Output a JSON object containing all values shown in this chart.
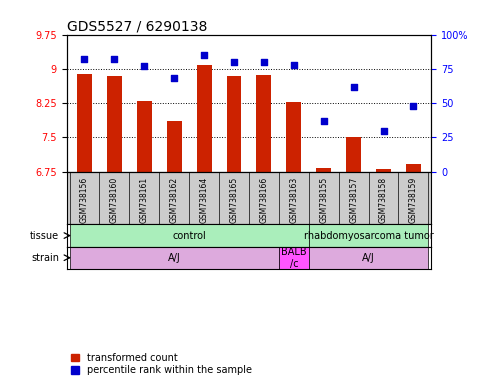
{
  "title": "GDS5527 / 6290138",
  "samples": [
    "GSM738156",
    "GSM738160",
    "GSM738161",
    "GSM738162",
    "GSM738164",
    "GSM738165",
    "GSM738166",
    "GSM738163",
    "GSM738155",
    "GSM738157",
    "GSM738158",
    "GSM738159"
  ],
  "bar_values": [
    8.88,
    8.85,
    8.3,
    7.85,
    9.08,
    8.85,
    8.87,
    8.28,
    6.83,
    7.52,
    6.8,
    6.92
  ],
  "dot_values": [
    82,
    82,
    77,
    68,
    85,
    80,
    80,
    78,
    37,
    62,
    30,
    48
  ],
  "ylim_left": [
    6.75,
    9.75
  ],
  "ylim_right": [
    0,
    100
  ],
  "yticks_left": [
    6.75,
    7.5,
    8.25,
    9.0,
    9.75
  ],
  "yticks_right": [
    0,
    25,
    50,
    75,
    100
  ],
  "ytick_labels_left": [
    "6.75",
    "7.5",
    "8.25",
    "9",
    "9.75"
  ],
  "ytick_labels_right": [
    "0",
    "25",
    "50",
    "75",
    "100%"
  ],
  "bar_color": "#cc2200",
  "dot_color": "#0000cc",
  "tissue_groups": [
    {
      "label": "control",
      "start": 0,
      "end": 7,
      "color": "#aaeebb"
    },
    {
      "label": "rhabdomyosarcoma tumor",
      "start": 8,
      "end": 11,
      "color": "#aaeebb"
    }
  ],
  "strain_groups": [
    {
      "label": "A/J",
      "start": 0,
      "end": 6,
      "color": "#ddaadd"
    },
    {
      "label": "BALB\n/c",
      "start": 7,
      "end": 7,
      "color": "#ff55ff"
    },
    {
      "label": "A/J",
      "start": 8,
      "end": 11,
      "color": "#ddaadd"
    }
  ],
  "tissue_label": "tissue",
  "strain_label": "strain",
  "legend_bar": "transformed count",
  "legend_dot": "percentile rank within the sample",
  "title_fontsize": 10,
  "tick_fontsize": 7,
  "sample_fontsize": 5.5,
  "annot_fontsize": 7,
  "legend_fontsize": 7
}
